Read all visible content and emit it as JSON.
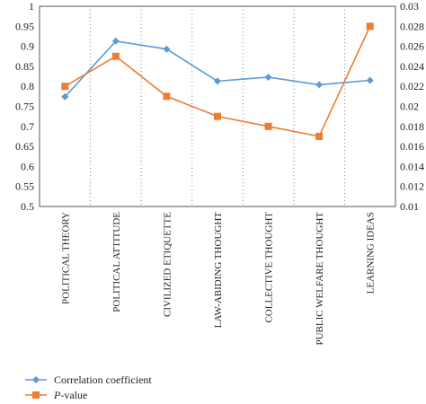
{
  "chart_data": {
    "type": "line",
    "categories": [
      "POLITICAL THEORY",
      "POLITICAL ATTITUDE",
      "CIVILIZED ETIQUETTE",
      "LAW-ABIDING THOUGHT",
      "COLLECTIVE THOUGHT",
      "PUBLIC WELFARE THOUGHT",
      "LEARNING IDEAS"
    ],
    "series": [
      {
        "name": "Correlation coefficient",
        "axis": "left",
        "color": "#5b9bd5",
        "marker": "diamond",
        "values": [
          0.774,
          0.913,
          0.893,
          0.813,
          0.823,
          0.804,
          0.815
        ]
      },
      {
        "name": "P-value",
        "name_italic": "P",
        "name_rest": "-value",
        "axis": "right",
        "color": "#ed7d31",
        "marker": "square",
        "values": [
          0.022,
          0.025,
          0.021,
          0.019,
          0.018,
          0.017,
          0.028
        ]
      }
    ],
    "y_left": {
      "ylim": [
        0.5,
        1.0
      ],
      "ticks": [
        "0.5",
        "0.55",
        "0.6",
        "0.65",
        "0.7",
        "0.75",
        "0.8",
        "0.85",
        "0.9",
        "0.95",
        "1"
      ]
    },
    "y_right": {
      "ylim": [
        0.01,
        0.03
      ],
      "ticks": [
        "0.01",
        "0.012",
        "0.014",
        "0.016",
        "0.018",
        "0.02",
        "0.022",
        "0.024",
        "0.026",
        "0.028",
        "0.03"
      ]
    },
    "title": "",
    "xlabel": "",
    "ylabel": "",
    "grid": "dotted vertical category separators",
    "legend_position": "bottom-left"
  }
}
